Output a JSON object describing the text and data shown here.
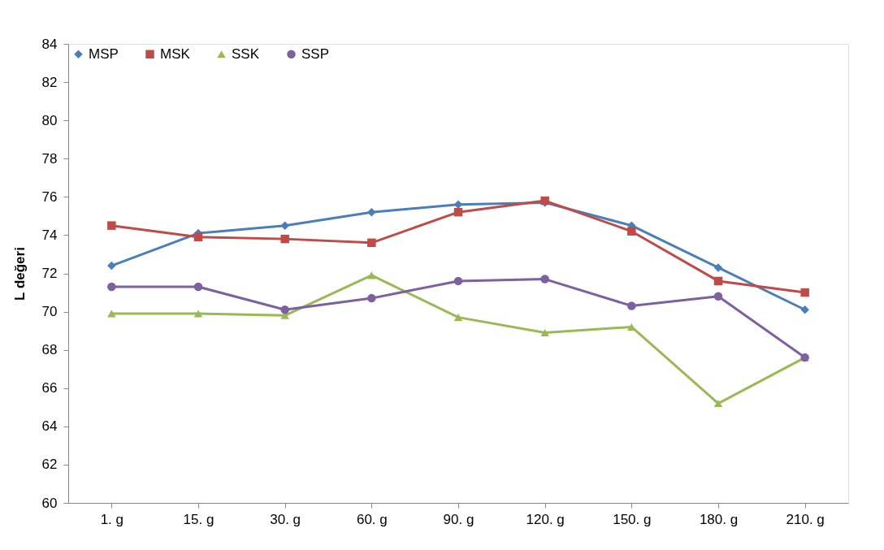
{
  "chart_data": {
    "type": "line",
    "ylabel": "L değeri",
    "categories": [
      "1. g",
      "15. g",
      "30. g",
      "60. g",
      "90. g",
      "120. g",
      "150. g",
      "180. g",
      "210. g"
    ],
    "ylim": [
      60,
      84
    ],
    "yticks": [
      60,
      62,
      64,
      66,
      68,
      70,
      72,
      74,
      76,
      78,
      80,
      82,
      84
    ],
    "grid": false,
    "legend": "top left",
    "line_style": "solid",
    "series": [
      {
        "name": "MSP",
        "color": "#4a7ebb",
        "marker": "diamond",
        "values": [
          72.4,
          74.1,
          74.5,
          75.2,
          75.6,
          75.7,
          74.5,
          72.3,
          70.1
        ]
      },
      {
        "name": "MSK",
        "color": "#be4b48",
        "marker": "square",
        "values": [
          74.5,
          73.9,
          73.8,
          73.6,
          75.2,
          75.8,
          74.2,
          71.6,
          71.0
        ]
      },
      {
        "name": "SSK",
        "color": "#98b954",
        "marker": "triangle",
        "values": [
          69.9,
          69.9,
          69.8,
          71.9,
          69.7,
          68.9,
          69.2,
          65.2,
          67.6
        ]
      },
      {
        "name": "SSP",
        "color": "#7d60a0",
        "marker": "circle",
        "values": [
          71.3,
          71.3,
          70.1,
          70.7,
          71.6,
          71.7,
          70.3,
          70.8,
          67.6
        ]
      }
    ]
  }
}
